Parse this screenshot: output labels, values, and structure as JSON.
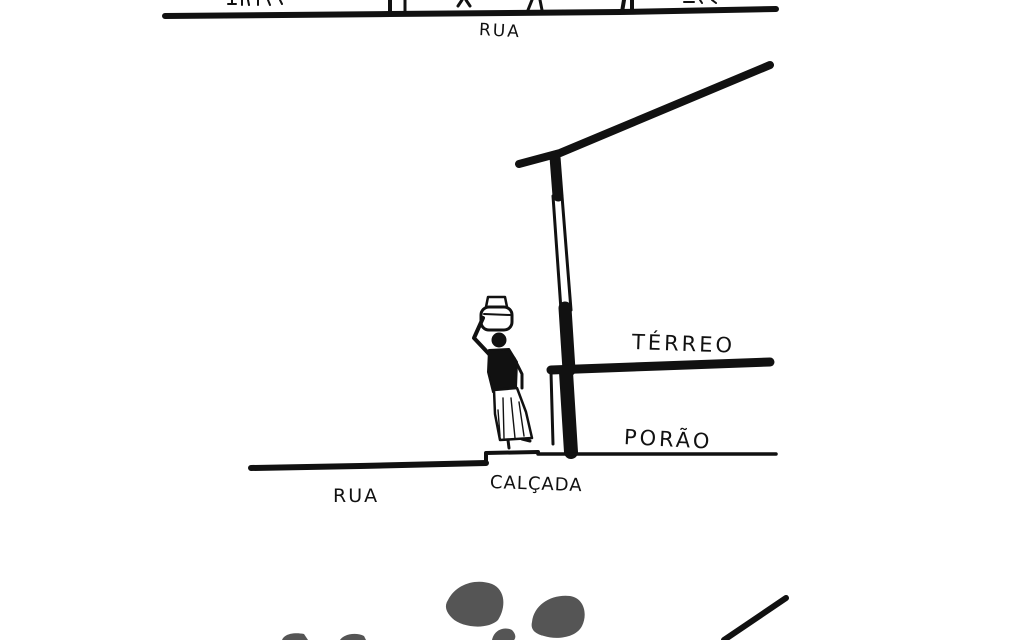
{
  "labels": {
    "top_street": "RUA",
    "ground_floor": "TÉRREO",
    "basement": "PORÃO",
    "street": "RUA",
    "sidewalk": "CALÇADA"
  },
  "colors": {
    "ink": "#111111",
    "paper": "#ffffff",
    "wash": "#555555"
  }
}
